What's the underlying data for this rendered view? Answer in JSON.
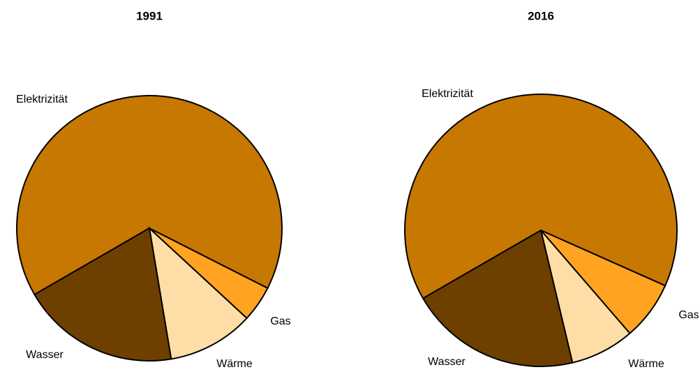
{
  "chart_data": [
    {
      "type": "pie",
      "title": "1991",
      "categories": [
        "Elektrizität",
        "Gas",
        "Wärme",
        "Wasser"
      ],
      "values": [
        65.8,
        4.4,
        10.5,
        19.3
      ],
      "colors": [
        "#c77800",
        "#ffa321",
        "#ffdda6",
        "#6e4000"
      ]
    },
    {
      "type": "pie",
      "title": "2016",
      "categories": [
        "Elektrizität",
        "Gas",
        "Wärme",
        "Wasser"
      ],
      "values": [
        65.0,
        7.0,
        7.6,
        20.4
      ],
      "colors": [
        "#c77800",
        "#ffa321",
        "#ffdda6",
        "#6e4000"
      ]
    }
  ]
}
